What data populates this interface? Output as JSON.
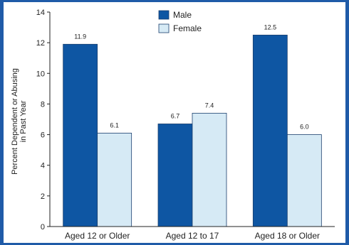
{
  "chart_data": {
    "type": "bar",
    "categories": [
      "Aged 12 or Older",
      "Aged 12 to 17",
      "Aged 18 or Older"
    ],
    "series": [
      {
        "name": "Male",
        "values": [
          11.9,
          6.7,
          12.5
        ],
        "color": "#0e56a3"
      },
      {
        "name": "Female",
        "values": [
          6.1,
          7.4,
          6.0
        ],
        "color": "#d6eaf5"
      }
    ],
    "data_labels": [
      [
        "11.9",
        "6.7",
        "12.5"
      ],
      [
        "6.1",
        "7.4",
        "6.0"
      ]
    ],
    "ylabel_lines": [
      "Percent Dependent or Abusing",
      "in Past Year"
    ],
    "xlabel": "",
    "ylim": [
      0,
      14
    ],
    "yticks": [
      0,
      2,
      4,
      6,
      8,
      10,
      12,
      14
    ],
    "grid": false,
    "legend_position": "top-center"
  }
}
